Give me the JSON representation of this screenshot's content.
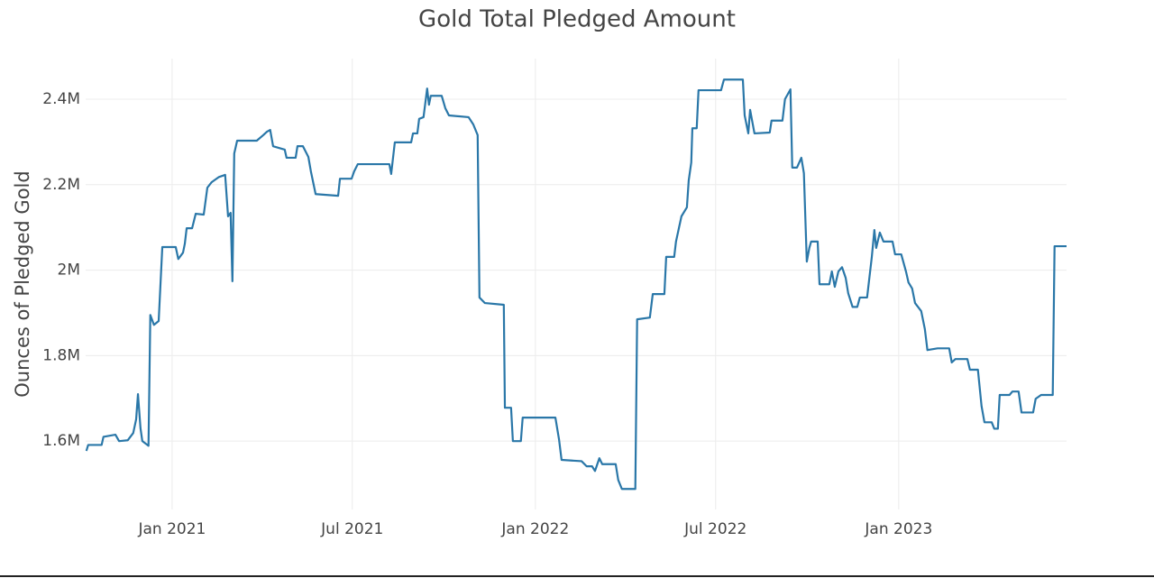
{
  "chart_data": {
    "type": "line",
    "title": "Gold Total Pledged Amount",
    "y_label": "Ounces of Pledged Gold",
    "grid": true,
    "xlim": [
      2020.762,
      2023.462
    ],
    "ylim": [
      1440000,
      2495000
    ],
    "xticks": [
      {
        "value": 2021,
        "label": "Jan 2021"
      },
      {
        "value": 2021.496,
        "label": "Jul 2021"
      },
      {
        "value": 2022,
        "label": "Jan 2022"
      },
      {
        "value": 2022.496,
        "label": "Jul 2022"
      },
      {
        "value": 2023,
        "label": "Jan 2023"
      }
    ],
    "yticks": [
      {
        "value": 1600000,
        "label": "1.6M"
      },
      {
        "value": 1800000,
        "label": "1.8M"
      },
      {
        "value": 2000000,
        "label": "2M"
      },
      {
        "value": 2200000,
        "label": "2.2M"
      },
      {
        "value": 2400000,
        "label": "2.4M"
      }
    ],
    "x": [
      2020.764,
      2020.769,
      2020.806,
      2020.811,
      2020.844,
      2020.854,
      2020.878,
      2020.893,
      2020.901,
      2020.906,
      2020.913,
      2020.918,
      2020.935,
      2020.94,
      2020.95,
      2020.963,
      2020.973,
      2021.01,
      2021.017,
      2021.03,
      2021.035,
      2021.04,
      2021.055,
      2021.065,
      2021.087,
      2021.097,
      2021.109,
      2021.129,
      2021.146,
      2021.154,
      2021.161,
      2021.166,
      2021.171,
      2021.179,
      2021.233,
      2021.251,
      2021.261,
      2021.27,
      2021.278,
      2021.31,
      2021.315,
      2021.34,
      2021.345,
      2021.36,
      2021.375,
      2021.382,
      2021.395,
      2021.457,
      2021.462,
      2021.494,
      2021.501,
      2021.511,
      2021.598,
      2021.603,
      2021.613,
      2021.658,
      2021.663,
      2021.675,
      2021.68,
      2021.692,
      2021.702,
      2021.707,
      2021.712,
      2021.742,
      2021.752,
      2021.762,
      2021.816,
      2021.829,
      2021.841,
      2021.846,
      2021.861,
      2021.913,
      2021.916,
      2021.933,
      2021.938,
      2021.96,
      2021.965,
      2022.055,
      2022.065,
      2022.072,
      2022.127,
      2022.141,
      2022.156,
      2022.164,
      2022.176,
      2022.184,
      2022.221,
      2022.228,
      2022.238,
      2022.275,
      2022.28,
      2022.315,
      2022.323,
      2022.355,
      2022.36,
      2022.382,
      2022.387,
      2022.402,
      2022.417,
      2022.422,
      2022.429,
      2022.432,
      2022.444,
      2022.449,
      2022.511,
      2022.519,
      2022.571,
      2022.576,
      2022.586,
      2022.591,
      2022.603,
      2022.645,
      2022.65,
      2022.68,
      2022.687,
      2022.702,
      2022.707,
      2022.72,
      2022.732,
      2022.739,
      2022.747,
      2022.754,
      2022.759,
      2022.777,
      2022.782,
      2022.809,
      2022.816,
      2022.824,
      2022.834,
      2022.844,
      2022.854,
      2022.861,
      2022.873,
      2022.886,
      2022.893,
      2022.913,
      2022.926,
      2022.933,
      2022.938,
      2022.948,
      2022.958,
      2022.983,
      2022.99,
      2023.007,
      2023.02,
      2023.027,
      2023.037,
      2023.045,
      2023.062,
      2023.072,
      2023.079,
      2023.107,
      2023.139,
      2023.146,
      2023.156,
      2023.189,
      2023.196,
      2023.218,
      2023.228,
      2023.236,
      2023.256,
      2023.263,
      2023.273,
      2023.278,
      2023.305,
      2023.313,
      2023.33,
      2023.338,
      2023.37,
      2023.377,
      2023.392,
      2023.424,
      2023.429,
      2023.462
    ],
    "series": [
      {
        "name": "Gold",
        "color": "#2a77a8",
        "values": [
          1577000,
          1591000,
          1591000,
          1610000,
          1615000,
          1600000,
          1602000,
          1619000,
          1651000,
          1710000,
          1630000,
          1600000,
          1589000,
          1895000,
          1872000,
          1881000,
          2054000,
          2054000,
          2026000,
          2041000,
          2062000,
          2098000,
          2098000,
          2132000,
          2130000,
          2193000,
          2206000,
          2218000,
          2223000,
          2126000,
          2134000,
          1974000,
          2273000,
          2303000,
          2303000,
          2316000,
          2324000,
          2328000,
          2290000,
          2282000,
          2263000,
          2263000,
          2290000,
          2290000,
          2265000,
          2231000,
          2178000,
          2174000,
          2214000,
          2214000,
          2231000,
          2248000,
          2248000,
          2225000,
          2299000,
          2299000,
          2320000,
          2320000,
          2354000,
          2358000,
          2425000,
          2387000,
          2408000,
          2408000,
          2379000,
          2362000,
          2358000,
          2341000,
          2316000,
          1936000,
          1923000,
          1919000,
          1678000,
          1678000,
          1600000,
          1600000,
          1655000,
          1655000,
          1604000,
          1556000,
          1553000,
          1541000,
          1541000,
          1530000,
          1560000,
          1546000,
          1546000,
          1509000,
          1488000,
          1488000,
          1885000,
          1889000,
          1944000,
          1944000,
          2031000,
          2031000,
          2067000,
          2126000,
          2147000,
          2210000,
          2252000,
          2332000,
          2332000,
          2421000,
          2421000,
          2446000,
          2446000,
          2362000,
          2320000,
          2375000,
          2320000,
          2322000,
          2350000,
          2350000,
          2400000,
          2423000,
          2240000,
          2240000,
          2263000,
          2227000,
          2020000,
          2052000,
          2067000,
          2067000,
          1967000,
          1967000,
          1997000,
          1961000,
          1997000,
          2007000,
          1982000,
          1946000,
          1914000,
          1914000,
          1936000,
          1936000,
          2031000,
          2094000,
          2052000,
          2088000,
          2067000,
          2067000,
          2037000,
          2037000,
          1997000,
          1971000,
          1957000,
          1923000,
          1904000,
          1862000,
          1813000,
          1817000,
          1817000,
          1784000,
          1792000,
          1792000,
          1767000,
          1767000,
          1682000,
          1644000,
          1644000,
          1629000,
          1629000,
          1708000,
          1708000,
          1716000,
          1716000,
          1667000,
          1667000,
          1699000,
          1708000,
          1708000,
          2056000,
          2056000
        ]
      }
    ]
  }
}
